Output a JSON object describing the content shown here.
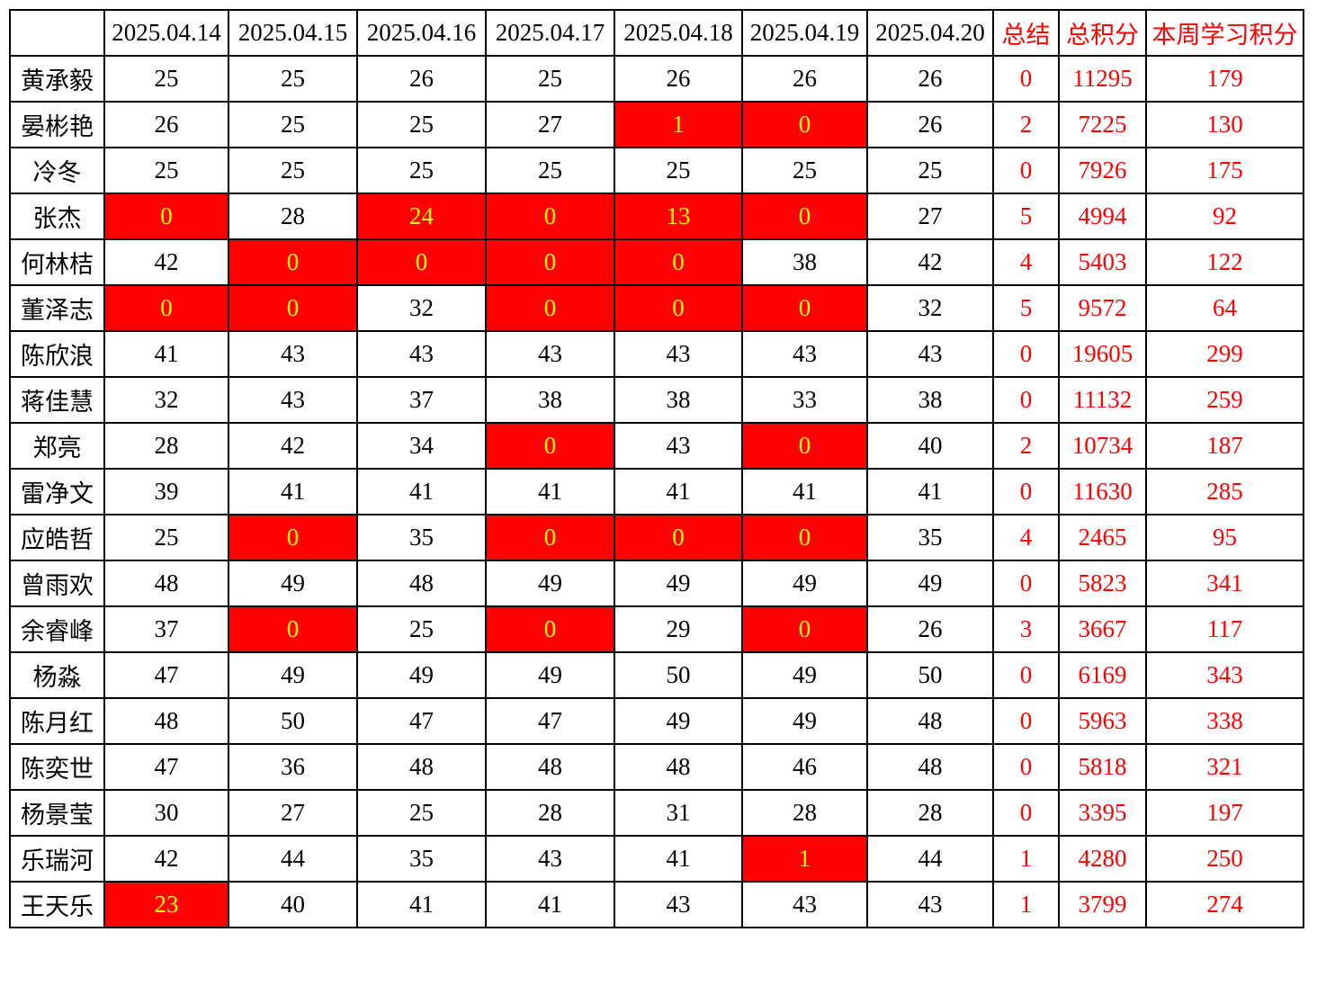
{
  "colors": {
    "highlight_bg": "#ff0000",
    "highlight_text": "#ffff00",
    "accent_text": "#ff0000",
    "body_text": "#000000",
    "border": "#000000"
  },
  "table": {
    "header": {
      "corner": "",
      "dates": [
        "2025.04.14",
        "2025.04.15",
        "2025.04.16",
        "2025.04.17",
        "2025.04.18",
        "2025.04.19",
        "2025.04.20"
      ],
      "summary": "总结",
      "total": "总积分",
      "week": "本周学习积分"
    },
    "rows": [
      {
        "name": "黄承毅",
        "days": [
          {
            "v": 25
          },
          {
            "v": 25
          },
          {
            "v": 26
          },
          {
            "v": 25
          },
          {
            "v": 26
          },
          {
            "v": 26
          },
          {
            "v": 26
          }
        ],
        "summary": 0,
        "total": 11295,
        "week": 179
      },
      {
        "name": "晏彬艳",
        "days": [
          {
            "v": 26
          },
          {
            "v": 25
          },
          {
            "v": 25
          },
          {
            "v": 27
          },
          {
            "v": 1,
            "hl": true
          },
          {
            "v": 0,
            "hl": true
          },
          {
            "v": 26
          }
        ],
        "summary": 2,
        "total": 7225,
        "week": 130
      },
      {
        "name": "冷冬",
        "days": [
          {
            "v": 25
          },
          {
            "v": 25
          },
          {
            "v": 25
          },
          {
            "v": 25
          },
          {
            "v": 25
          },
          {
            "v": 25
          },
          {
            "v": 25
          }
        ],
        "summary": 0,
        "total": 7926,
        "week": 175
      },
      {
        "name": "张杰",
        "days": [
          {
            "v": 0,
            "hl": true
          },
          {
            "v": 28
          },
          {
            "v": 24,
            "hl": true
          },
          {
            "v": 0,
            "hl": true
          },
          {
            "v": 13,
            "hl": true
          },
          {
            "v": 0,
            "hl": true
          },
          {
            "v": 27
          }
        ],
        "summary": 5,
        "total": 4994,
        "week": 92
      },
      {
        "name": "何林桔",
        "days": [
          {
            "v": 42
          },
          {
            "v": 0,
            "hl": true
          },
          {
            "v": 0,
            "hl": true
          },
          {
            "v": 0,
            "hl": true
          },
          {
            "v": 0,
            "hl": true
          },
          {
            "v": 38
          },
          {
            "v": 42
          }
        ],
        "summary": 4,
        "total": 5403,
        "week": 122
      },
      {
        "name": "董泽志",
        "days": [
          {
            "v": 0,
            "hl": true
          },
          {
            "v": 0,
            "hl": true
          },
          {
            "v": 32
          },
          {
            "v": 0,
            "hl": true
          },
          {
            "v": 0,
            "hl": true
          },
          {
            "v": 0,
            "hl": true
          },
          {
            "v": 32
          }
        ],
        "summary": 5,
        "total": 9572,
        "week": 64
      },
      {
        "name": "陈欣浪",
        "days": [
          {
            "v": 41
          },
          {
            "v": 43
          },
          {
            "v": 43
          },
          {
            "v": 43
          },
          {
            "v": 43
          },
          {
            "v": 43
          },
          {
            "v": 43
          }
        ],
        "summary": 0,
        "total": 19605,
        "week": 299
      },
      {
        "name": "蒋佳慧",
        "days": [
          {
            "v": 32
          },
          {
            "v": 43
          },
          {
            "v": 37
          },
          {
            "v": 38
          },
          {
            "v": 38
          },
          {
            "v": 33
          },
          {
            "v": 38
          }
        ],
        "summary": 0,
        "total": 11132,
        "week": 259
      },
      {
        "name": "郑亮",
        "days": [
          {
            "v": 28
          },
          {
            "v": 42
          },
          {
            "v": 34
          },
          {
            "v": 0,
            "hl": true
          },
          {
            "v": 43
          },
          {
            "v": 0,
            "hl": true
          },
          {
            "v": 40
          }
        ],
        "summary": 2,
        "total": 10734,
        "week": 187
      },
      {
        "name": "雷净文",
        "days": [
          {
            "v": 39
          },
          {
            "v": 41
          },
          {
            "v": 41
          },
          {
            "v": 41
          },
          {
            "v": 41
          },
          {
            "v": 41
          },
          {
            "v": 41
          }
        ],
        "summary": 0,
        "total": 11630,
        "week": 285
      },
      {
        "name": "应皓哲",
        "days": [
          {
            "v": 25
          },
          {
            "v": 0,
            "hl": true
          },
          {
            "v": 35
          },
          {
            "v": 0,
            "hl": true
          },
          {
            "v": 0,
            "hl": true
          },
          {
            "v": 0,
            "hl": true
          },
          {
            "v": 35
          }
        ],
        "summary": 4,
        "total": 2465,
        "week": 95
      },
      {
        "name": "曾雨欢",
        "days": [
          {
            "v": 48
          },
          {
            "v": 49
          },
          {
            "v": 48
          },
          {
            "v": 49
          },
          {
            "v": 49
          },
          {
            "v": 49
          },
          {
            "v": 49
          }
        ],
        "summary": 0,
        "total": 5823,
        "week": 341
      },
      {
        "name": "余睿峰",
        "days": [
          {
            "v": 37
          },
          {
            "v": 0,
            "hl": true
          },
          {
            "v": 25
          },
          {
            "v": 0,
            "hl": true
          },
          {
            "v": 29
          },
          {
            "v": 0,
            "hl": true
          },
          {
            "v": 26
          }
        ],
        "summary": 3,
        "total": 3667,
        "week": 117
      },
      {
        "name": "杨淼",
        "days": [
          {
            "v": 47
          },
          {
            "v": 49
          },
          {
            "v": 49
          },
          {
            "v": 49
          },
          {
            "v": 50
          },
          {
            "v": 49
          },
          {
            "v": 50
          }
        ],
        "summary": 0,
        "total": 6169,
        "week": 343
      },
      {
        "name": "陈月红",
        "days": [
          {
            "v": 48
          },
          {
            "v": 50
          },
          {
            "v": 47
          },
          {
            "v": 47
          },
          {
            "v": 49
          },
          {
            "v": 49
          },
          {
            "v": 48
          }
        ],
        "summary": 0,
        "total": 5963,
        "week": 338
      },
      {
        "name": "陈奕世",
        "days": [
          {
            "v": 47
          },
          {
            "v": 36
          },
          {
            "v": 48
          },
          {
            "v": 48
          },
          {
            "v": 48
          },
          {
            "v": 46
          },
          {
            "v": 48
          }
        ],
        "summary": 0,
        "total": 5818,
        "week": 321
      },
      {
        "name": "杨景莹",
        "days": [
          {
            "v": 30
          },
          {
            "v": 27
          },
          {
            "v": 25
          },
          {
            "v": 28
          },
          {
            "v": 31
          },
          {
            "v": 28
          },
          {
            "v": 28
          }
        ],
        "summary": 0,
        "total": 3395,
        "week": 197
      },
      {
        "name": "乐瑞河",
        "days": [
          {
            "v": 42
          },
          {
            "v": 44
          },
          {
            "v": 35
          },
          {
            "v": 43
          },
          {
            "v": 41
          },
          {
            "v": 1,
            "hl": true
          },
          {
            "v": 44
          }
        ],
        "summary": 1,
        "total": 4280,
        "week": 250
      },
      {
        "name": "王天乐",
        "days": [
          {
            "v": 23,
            "hl": true
          },
          {
            "v": 40
          },
          {
            "v": 41
          },
          {
            "v": 41
          },
          {
            "v": 43
          },
          {
            "v": 43
          },
          {
            "v": 43
          }
        ],
        "summary": 1,
        "total": 3799,
        "week": 274
      }
    ]
  }
}
